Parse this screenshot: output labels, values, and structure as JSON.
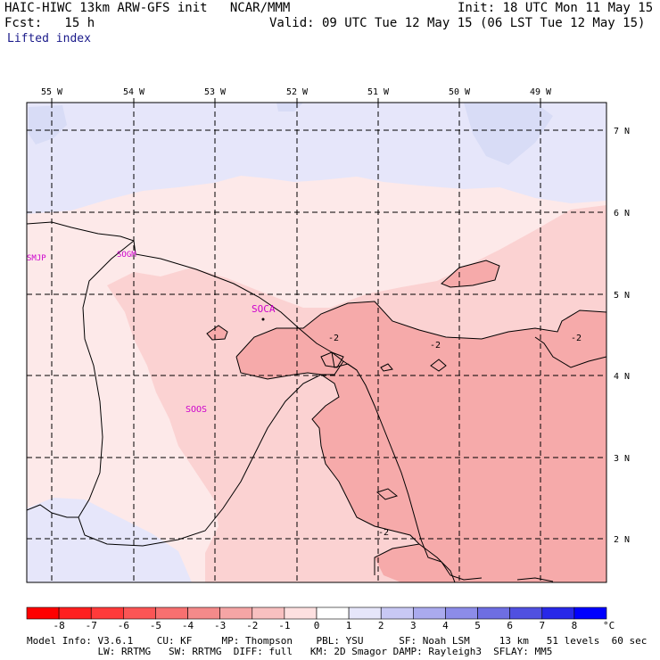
{
  "header": {
    "model_line": "HAIC-HIWC 13km ARW-GFS init   NCAR/MMM",
    "init_line": "Init: 18 UTC Mon 11 May 15",
    "fcst_line": "Fcst:   15 h",
    "valid_line": "Valid: 09 UTC Tue 12 May 15 (06 LST Tue 12 May 15)",
    "field_name": "Lifted index"
  },
  "map": {
    "longitude_labels": [
      "55 W",
      "54 W",
      "53 W",
      "52 W",
      "51 W",
      "50 W",
      "49 W"
    ],
    "latitude_labels": [
      "7 N",
      "6 N",
      "5 N",
      "4 N",
      "3 N",
      "2 N"
    ],
    "station_labels": [
      "SMJP",
      "SOGM",
      "SOCA",
      "SOOS"
    ],
    "contour_labels": [
      "-2",
      "-2",
      "-2",
      "-2"
    ],
    "colors": {
      "light_blue": "#e6e6fa",
      "mid_blue": "#d8dcf6",
      "lightest_pink": "#fde9e9",
      "light_pink": "#fbd2d2",
      "mid_pink": "#f6aaaa",
      "coast": "#000000",
      "station": "#cc00cc"
    }
  },
  "colorbar": {
    "tick_labels": [
      "-8",
      "-7",
      "-6",
      "-5",
      "-4",
      "-3",
      "-2",
      "-1",
      "0",
      "1",
      "2",
      "3",
      "4",
      "5",
      "6",
      "7",
      "8"
    ],
    "unit": "°C",
    "colors": [
      "#ff0000",
      "#ff2020",
      "#ff3a3a",
      "#fb5555",
      "#f77070",
      "#f48a8a",
      "#f5a5a5",
      "#f8c0c0",
      "#fde0e0",
      "#ffffff",
      "#e6e6fa",
      "#c8c8f4",
      "#aaaaee",
      "#8c8ce8",
      "#6e6ee2",
      "#5050e0",
      "#2828e8",
      "#0000ff"
    ]
  },
  "footer": {
    "line1": "Model Info: V3.6.1    CU: KF     MP: Thompson    PBL: YSU      SF: Noah LSM     13 km   51 levels  60 sec",
    "line2": "            LW: RRTMG   SW: RRTMG  DIFF: full   KM: 2D Smagor DAMP: Rayleigh3  SFLAY: MM5"
  }
}
